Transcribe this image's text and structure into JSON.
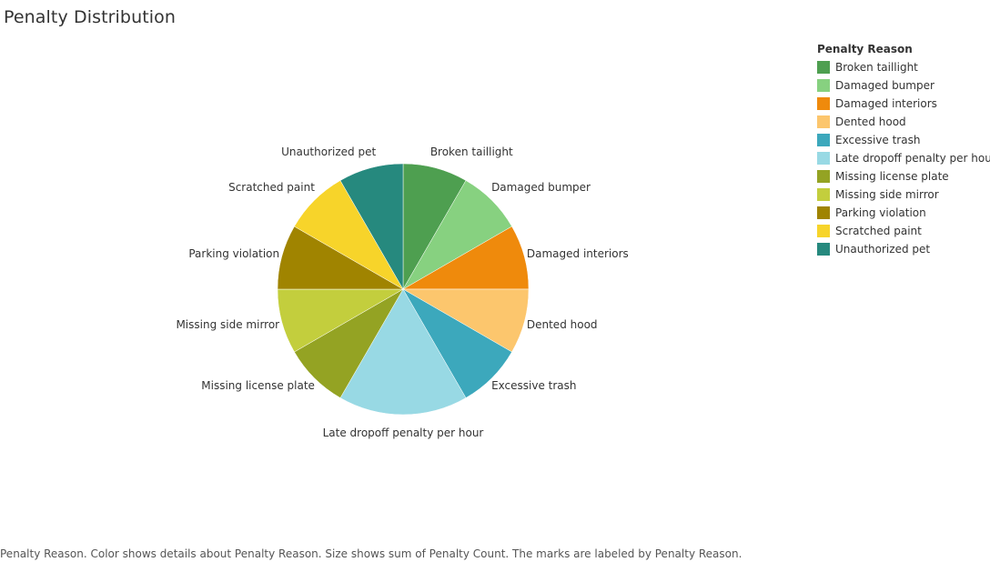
{
  "title": "Penalty Distribution",
  "legend": {
    "title": "Penalty Reason"
  },
  "caption": "Penalty Reason.  Color shows details about Penalty Reason.  Size shows sum of Penalty Count.  The marks are labeled by Penalty Reason.",
  "chart_data": {
    "type": "pie",
    "title": "Penalty Distribution",
    "legend_title": "Penalty Reason",
    "legend_position": "top-right",
    "start_angle": "12 o'clock, clockwise",
    "slices": [
      {
        "label": "Broken taillight",
        "value": 1,
        "color": "#4E9F50"
      },
      {
        "label": "Damaged bumper",
        "value": 1,
        "color": "#87D180"
      },
      {
        "label": "Damaged interiors",
        "value": 1,
        "color": "#EF8A0C"
      },
      {
        "label": "Dented hood",
        "value": 1,
        "color": "#FCC66D"
      },
      {
        "label": "Excessive trash",
        "value": 1,
        "color": "#3CA8BC"
      },
      {
        "label": "Late dropoff penalty per hour",
        "value": 2,
        "color": "#98D9E4"
      },
      {
        "label": "Missing license plate",
        "value": 1,
        "color": "#94A323"
      },
      {
        "label": "Missing side mirror",
        "value": 1,
        "color": "#C3CE3D"
      },
      {
        "label": "Parking violation",
        "value": 1,
        "color": "#A08400"
      },
      {
        "label": "Scratched paint",
        "value": 1,
        "color": "#F7D42A"
      },
      {
        "label": "Unauthorized pet",
        "value": 1,
        "color": "#26897E"
      }
    ]
  }
}
